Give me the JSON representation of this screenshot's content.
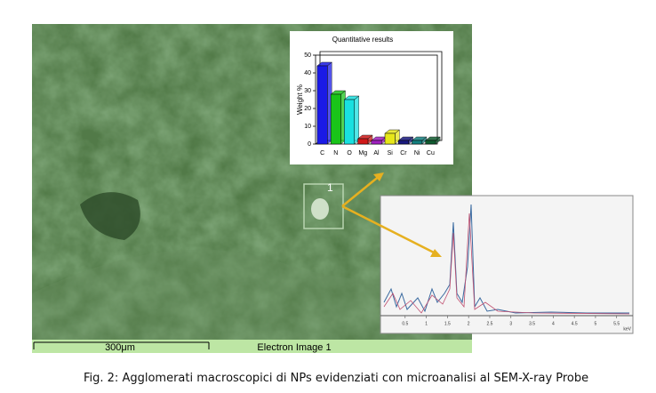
{
  "chart_data": {
    "type": "bar",
    "title": "Quantitative results",
    "y_label": "Weight %",
    "categories": [
      "C",
      "N",
      "O",
      "Mg",
      "Al",
      "Si",
      "Cr",
      "Ni",
      "Cu"
    ],
    "values": [
      44,
      28,
      25,
      3,
      2,
      6,
      2,
      2,
      2
    ],
    "colors": [
      "#1a1ae6",
      "#19c419",
      "#19e0e0",
      "#d01818",
      "#a020c0",
      "#e6e619",
      "#1a1a80",
      "#148080",
      "#105c30"
    ],
    "ylim": [
      0,
      50
    ],
    "yticks": [
      0,
      10,
      20,
      30,
      40,
      50
    ]
  },
  "spectrum": {
    "xlim": [
      0,
      5.8
    ],
    "xticks": [
      0.5,
      1,
      1.5,
      2,
      2.5,
      3,
      3.5,
      4,
      4.5,
      5,
      5.5
    ],
    "x_unit": "keV"
  },
  "image": {
    "marker": "1",
    "scale_label": "300μm",
    "label": "Electron Image 1"
  },
  "caption": {
    "prefix": "Fig. 2:",
    "text": "Agglomerati macroscopici di NPs evidenziati con microanalisi al SEM-X-ray Probe"
  }
}
